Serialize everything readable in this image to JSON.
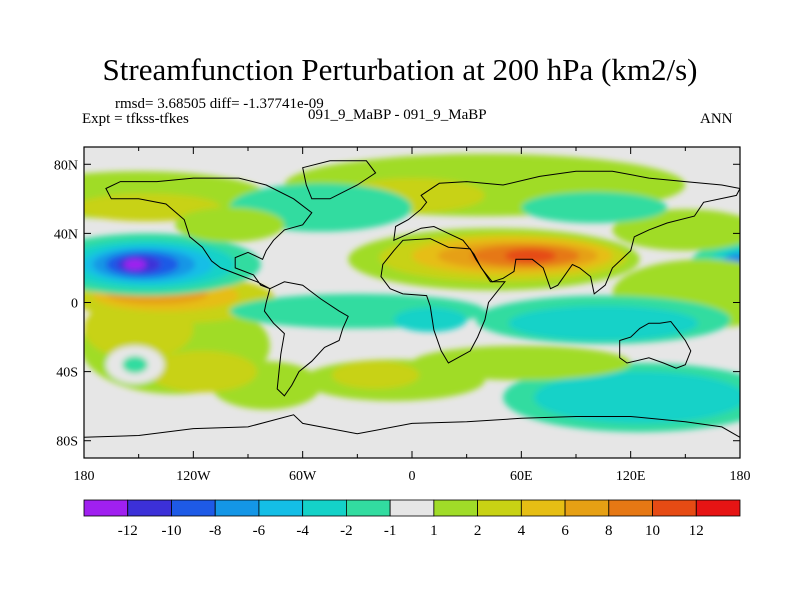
{
  "header": {
    "title": "Streamfunction Perturbation at 200 hPa (km2/s)",
    "stats": "rmsd= 3.68505 diff= -1.37741e-09",
    "experiment": "Expt = tfkss-tfkes",
    "case": "091_9_MaBP - 091_9_MaBP",
    "period": "ANN"
  },
  "chart_data": {
    "type": "heatmap",
    "title": "Streamfunction Perturbation at 200 hPa (km2/s)",
    "xlabel": "",
    "ylabel": "",
    "xlim": [
      -180,
      180
    ],
    "ylim": [
      -90,
      90
    ],
    "x_ticks": [
      {
        "value": -180,
        "label": "180"
      },
      {
        "value": -120,
        "label": "120W"
      },
      {
        "value": -60,
        "label": "60W"
      },
      {
        "value": 0,
        "label": "0"
      },
      {
        "value": 60,
        "label": "60E"
      },
      {
        "value": 120,
        "label": "120E"
      },
      {
        "value": 180,
        "label": "180"
      }
    ],
    "y_ticks": [
      {
        "value": 80,
        "label": "80N"
      },
      {
        "value": 40,
        "label": "40N"
      },
      {
        "value": 0,
        "label": "0"
      },
      {
        "value": -40,
        "label": "40S"
      },
      {
        "value": -80,
        "label": "80S"
      }
    ],
    "colorbar": {
      "levels": [
        -14,
        -12,
        -10,
        -8,
        -6,
        -4,
        -2,
        -1,
        1,
        2,
        4,
        6,
        8,
        10,
        12,
        14
      ],
      "labels": [
        "-12",
        "-10",
        "-8",
        "-6",
        "-4",
        "-2",
        "-1",
        "1",
        "2",
        "4",
        "6",
        "8",
        "10",
        "12"
      ],
      "colors": [
        "#a020f0",
        "#3c30d8",
        "#1e5ae6",
        "#1496e6",
        "#14bee6",
        "#14d2c8",
        "#32dca0",
        "#e6e6e6",
        "#a0dc28",
        "#c8d214",
        "#e6be14",
        "#e6a014",
        "#e67814",
        "#e64b14",
        "#e61414"
      ]
    },
    "features": [
      {
        "name": "north-pacific-low",
        "lon": -145,
        "lat": 22,
        "value": -12
      },
      {
        "name": "east-pacific-low",
        "lon": 180,
        "lat": 20,
        "value": -9
      },
      {
        "name": "eurasian-high",
        "lon": 60,
        "lat": 27,
        "value": 10
      },
      {
        "name": "pacific-high",
        "lon": -110,
        "lat": 7,
        "value": 6
      },
      {
        "name": "south-pacific-low",
        "lon": -150,
        "lat": -35,
        "value": -2
      },
      {
        "name": "indian-ocean-low",
        "lon": 110,
        "lat": -10,
        "value": -4
      },
      {
        "name": "southern-ocean-low",
        "lon": 130,
        "lat": -55,
        "value": -4
      },
      {
        "name": "arctic-ridge",
        "lon": 20,
        "lat": 80,
        "value": 2
      }
    ]
  }
}
